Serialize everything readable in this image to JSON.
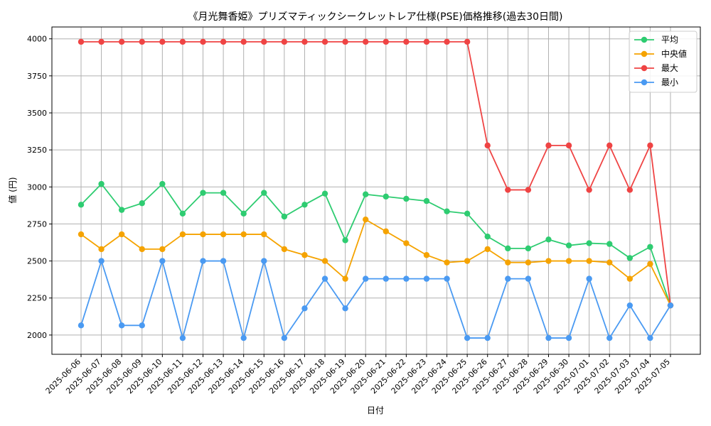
{
  "chart_data": {
    "type": "line",
    "title": "《月光舞香姫》プリズマティックシークレットレア仕様(PSE)価格推移(過去30日間)",
    "xlabel": "日付",
    "ylabel": "値 (円)",
    "ylim": [
      1870,
      4080
    ],
    "yticks": [
      2000,
      2250,
      2500,
      2750,
      3000,
      3250,
      3500,
      3750,
      4000
    ],
    "grid": true,
    "legend_position": "top-right",
    "categories": [
      "2025-06-06",
      "2025-06-07",
      "2025-06-08",
      "2025-06-09",
      "2025-06-10",
      "2025-06-11",
      "2025-06-12",
      "2025-06-13",
      "2025-06-14",
      "2025-06-15",
      "2025-06-16",
      "2025-06-17",
      "2025-06-18",
      "2025-06-19",
      "2025-06-20",
      "2025-06-21",
      "2025-06-22",
      "2025-06-23",
      "2025-06-24",
      "2025-06-25",
      "2025-06-26",
      "2025-06-27",
      "2025-06-28",
      "2025-06-29",
      "2025-06-30",
      "2025-07-01",
      "2025-07-02",
      "2025-07-03",
      "2025-07-04",
      "2025-07-05"
    ],
    "series": [
      {
        "name": "平均",
        "color": "#2ecc71",
        "values": [
          2880,
          3020,
          2845,
          2890,
          3020,
          2820,
          2960,
          2960,
          2820,
          2960,
          2800,
          2880,
          2955,
          2640,
          2950,
          2935,
          2920,
          2905,
          2835,
          2820,
          2665,
          2585,
          2585,
          2645,
          2605,
          2620,
          2615,
          2520,
          2595,
          2200
        ]
      },
      {
        "name": "中央値",
        "color": "#f5a300",
        "values": [
          2680,
          2580,
          2680,
          2580,
          2580,
          2680,
          2680,
          2680,
          2680,
          2680,
          2580,
          2540,
          2500,
          2380,
          2780,
          2700,
          2620,
          2540,
          2490,
          2500,
          2580,
          2490,
          2490,
          2500,
          2500,
          2500,
          2490,
          2380,
          2480,
          2200
        ]
      },
      {
        "name": "最大",
        "color": "#ef4444",
        "values": [
          3980,
          3980,
          3980,
          3980,
          3980,
          3980,
          3980,
          3980,
          3980,
          3980,
          3980,
          3980,
          3980,
          3980,
          3980,
          3980,
          3980,
          3980,
          3980,
          3980,
          3280,
          2980,
          2980,
          3280,
          3280,
          2980,
          3280,
          2980,
          3280,
          2200
        ]
      },
      {
        "name": "最小",
        "color": "#4a9af2",
        "values": [
          2065,
          2500,
          2065,
          2065,
          2500,
          1980,
          2500,
          2500,
          1980,
          2500,
          1980,
          2180,
          2380,
          2180,
          2380,
          2380,
          2380,
          2380,
          2380,
          1980,
          1980,
          2380,
          2380,
          1980,
          1980,
          2380,
          1980,
          2200,
          1980,
          2200
        ]
      }
    ]
  }
}
